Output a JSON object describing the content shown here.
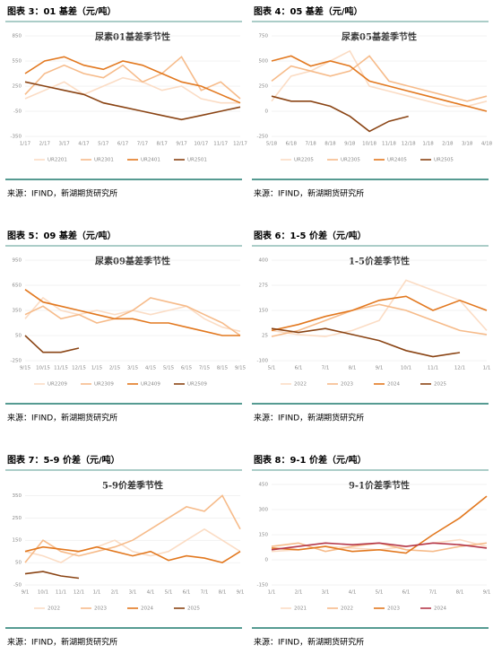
{
  "chart_data": [
    {
      "type": "line",
      "caption": "图表 3：01 基差（元/吨）",
      "title": "尿素01基差季节性",
      "source": "来源：IFIND，新湖期货研究所",
      "categories": [
        "1/17",
        "2/17",
        "3/17",
        "4/17",
        "5/17",
        "6/17",
        "7/17",
        "8/17",
        "9/17",
        "10/17",
        "11/17",
        "12/17"
      ],
      "ylim": [
        -350,
        850
      ],
      "yticks": [
        -350,
        -50,
        250,
        550,
        850
      ],
      "series": [
        {
          "name": "UR2201",
          "color": "#fbdcc4",
          "values": [
            100,
            200,
            300,
            150,
            250,
            350,
            300,
            200,
            250,
            100,
            50,
            50
          ]
        },
        {
          "name": "UR2301",
          "color": "#f6bb8a",
          "values": [
            150,
            400,
            500,
            400,
            350,
            500,
            300,
            400,
            600,
            200,
            300,
            100
          ]
        },
        {
          "name": "UR2401",
          "color": "#e2781f",
          "values": [
            400,
            550,
            600,
            500,
            450,
            550,
            500,
            400,
            300,
            250,
            150,
            50
          ]
        },
        {
          "name": "UR2501",
          "color": "#8a4414",
          "values": [
            300,
            250,
            200,
            150,
            50,
            0,
            -50,
            -100,
            -150,
            -100,
            -50,
            0
          ]
        }
      ]
    },
    {
      "type": "line",
      "caption": "图表 4：05 基差（元/吨）",
      "title": "尿素05基差季节性",
      "source": "来源：IFIND，新湖期货研究所",
      "categories": [
        "5/18",
        "6/18",
        "7/18",
        "8/18",
        "9/18",
        "10/18",
        "11/18",
        "12/18",
        "1/18",
        "2/18",
        "3/18",
        "4/18"
      ],
      "ylim": [
        -250,
        750
      ],
      "yticks": [
        -250,
        0,
        250,
        500,
        750
      ],
      "series": [
        {
          "name": "UR2205",
          "color": "#fbdcc4",
          "values": [
            100,
            350,
            400,
            500,
            600,
            250,
            200,
            150,
            100,
            50,
            50,
            100
          ]
        },
        {
          "name": "UR2305",
          "color": "#f6bb8a",
          "values": [
            300,
            450,
            400,
            350,
            400,
            550,
            300,
            250,
            200,
            150,
            100,
            150
          ]
        },
        {
          "name": "UR2405",
          "color": "#e2781f",
          "values": [
            500,
            550,
            450,
            500,
            450,
            300,
            250,
            200,
            150,
            100,
            50,
            0
          ]
        },
        {
          "name": "UR2505",
          "color": "#8a4414",
          "values": [
            150,
            100,
            100,
            50,
            -50,
            -200,
            -100,
            -50,
            null,
            null,
            null,
            null
          ]
        }
      ]
    },
    {
      "type": "line",
      "caption": "图表 5：09 基差（元/吨）",
      "title": "尿素09基差季节性",
      "source": "来源：IFIND，新湖期货研究所",
      "categories": [
        "9/15",
        "10/15",
        "11/15",
        "12/15",
        "1/15",
        "2/15",
        "3/15",
        "4/15",
        "5/15",
        "6/15",
        "7/15",
        "8/15",
        "9/15"
      ],
      "ylim": [
        -250,
        950
      ],
      "yticks": [
        -250,
        50,
        350,
        650,
        950
      ],
      "series": [
        {
          "name": "UR2209",
          "color": "#fbdcc4",
          "values": [
            250,
            500,
            350,
            300,
            350,
            300,
            350,
            300,
            350,
            400,
            250,
            150,
            100
          ]
        },
        {
          "name": "UR2309",
          "color": "#f6bb8a",
          "values": [
            300,
            400,
            250,
            300,
            200,
            250,
            350,
            500,
            450,
            400,
            300,
            200,
            50
          ]
        },
        {
          "name": "UR2409",
          "color": "#e2781f",
          "values": [
            600,
            450,
            400,
            350,
            300,
            250,
            250,
            200,
            200,
            150,
            100,
            50,
            50
          ]
        },
        {
          "name": "UR2509",
          "color": "#8a4414",
          "values": [
            50,
            -150,
            -150,
            -100,
            null,
            null,
            null,
            null,
            null,
            null,
            null,
            null,
            null
          ]
        }
      ]
    },
    {
      "type": "line",
      "caption": "图表 6：1-5 价差（元/吨）",
      "title": "1-5价差季节性",
      "source": "来源：IFIND，新湖期货研究所",
      "categories": [
        "5/1",
        "6/1",
        "7/1",
        "8/1",
        "9/1",
        "10/1",
        "11/1",
        "12/1",
        "1/1"
      ],
      "ylim": [
        -100,
        400
      ],
      "yticks": [
        -100,
        25,
        150,
        275,
        400
      ],
      "series": [
        {
          "name": "2022",
          "color": "#fbdcc4",
          "values": [
            50,
            30,
            20,
            50,
            100,
            300,
            250,
            200,
            50
          ]
        },
        {
          "name": "2023",
          "color": "#f6bb8a",
          "values": [
            20,
            50,
            100,
            150,
            180,
            150,
            100,
            50,
            30
          ]
        },
        {
          "name": "2024",
          "color": "#e2781f",
          "values": [
            50,
            80,
            120,
            150,
            200,
            220,
            150,
            200,
            150
          ]
        },
        {
          "name": "2025",
          "color": "#8a4414",
          "values": [
            60,
            40,
            60,
            30,
            0,
            -50,
            -80,
            -60,
            null
          ]
        }
      ]
    },
    {
      "type": "line",
      "caption": "图表 7：5-9 价差（元/吨）",
      "title": "5-9价差季节性",
      "source": "来源：IFIND，新湖期货研究所",
      "categories": [
        "9/1",
        "10/1",
        "11/1",
        "12/1",
        "1/1",
        "2/1",
        "3/1",
        "4/1",
        "5/1",
        "6/1",
        "7/1",
        "8/1",
        "9/1"
      ],
      "ylim": [
        -50,
        400
      ],
      "yticks": [
        -50,
        50,
        150,
        250,
        350
      ],
      "series": [
        {
          "name": "2022",
          "color": "#fbdcc4",
          "values": [
            100,
            80,
            50,
            100,
            120,
            150,
            100,
            80,
            100,
            150,
            200,
            150,
            100
          ]
        },
        {
          "name": "2023",
          "color": "#f6bb8a",
          "values": [
            50,
            150,
            100,
            80,
            100,
            120,
            150,
            200,
            250,
            300,
            280,
            350,
            200
          ]
        },
        {
          "name": "2024",
          "color": "#e2781f",
          "values": [
            100,
            120,
            110,
            100,
            120,
            100,
            80,
            100,
            60,
            80,
            70,
            50,
            100
          ]
        },
        {
          "name": "2025",
          "color": "#8a4414",
          "values": [
            0,
            10,
            -10,
            -20,
            null,
            null,
            null,
            null,
            null,
            null,
            null,
            null,
            null
          ]
        }
      ]
    },
    {
      "type": "line",
      "caption": "图表 8：9-1 价差（元/吨）",
      "title": "9-1价差季节性",
      "source": "来源：IFIND，新湖期货研究所",
      "categories": [
        "1/1",
        "2/1",
        "3/1",
        "4/1",
        "5/1",
        "6/1",
        "7/1",
        "8/1",
        "9/1"
      ],
      "ylim": [
        -150,
        450
      ],
      "yticks": [
        -150,
        0,
        150,
        300,
        450
      ],
      "series": [
        {
          "name": "2021",
          "color": "#fbdcc4",
          "values": [
            50,
            60,
            80,
            70,
            60,
            80,
            100,
            120,
            80
          ]
        },
        {
          "name": "2022",
          "color": "#f6bb8a",
          "values": [
            80,
            100,
            50,
            80,
            100,
            60,
            50,
            80,
            100
          ]
        },
        {
          "name": "2023",
          "color": "#e2781f",
          "values": [
            70,
            60,
            80,
            50,
            60,
            40,
            150,
            250,
            380
          ]
        },
        {
          "name": "2024",
          "color": "#b5384a",
          "values": [
            60,
            80,
            100,
            90,
            100,
            80,
            100,
            90,
            70
          ]
        }
      ]
    }
  ]
}
